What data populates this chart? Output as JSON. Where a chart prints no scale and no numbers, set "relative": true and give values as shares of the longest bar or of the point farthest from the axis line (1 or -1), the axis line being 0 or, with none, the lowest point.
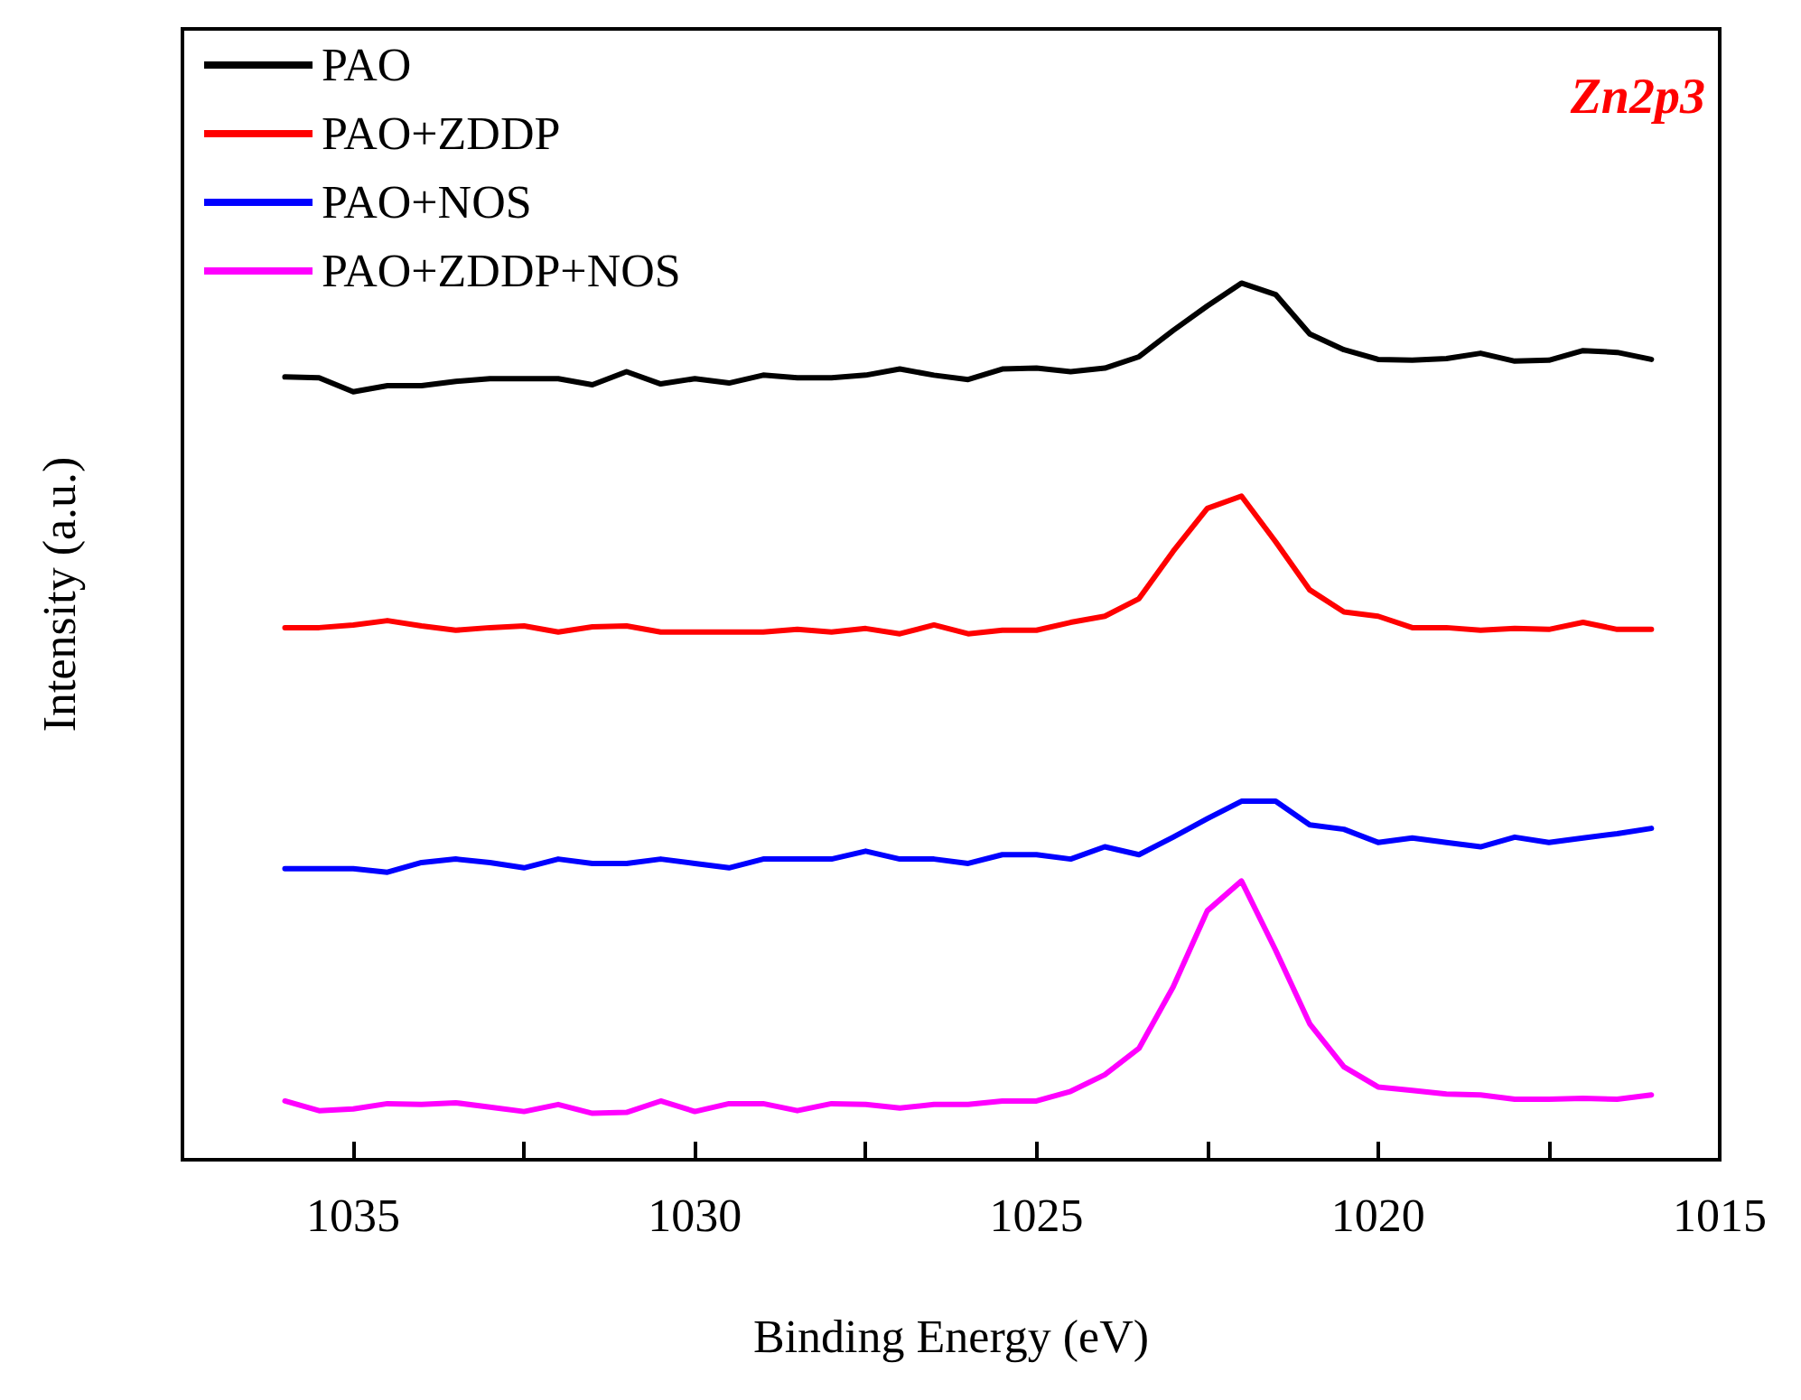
{
  "chart_data": {
    "type": "line",
    "relative": true,
    "xlabel": "Binding Energy (eV)",
    "ylabel": "Intensity (a.u.)",
    "annotations": [
      "Zn2p3"
    ],
    "xlim": [
      1037.5,
      1015
    ],
    "xticks": [
      1035,
      {
        "value": 1032.5,
        "label": null
      },
      1030,
      {
        "value": 1027.5,
        "label": null
      },
      1025,
      {
        "value": 1022.5,
        "label": null
      },
      1020,
      {
        "value": 1017.5,
        "label": null
      },
      1015
    ],
    "x": [
      1036,
      1035.5,
      1035,
      1034.5,
      1034,
      1033.5,
      1033,
      1032.5,
      1032,
      1031.5,
      1031,
      1030.5,
      1030,
      1029.5,
      1029,
      1028.5,
      1028,
      1027.5,
      1027,
      1026.5,
      1026,
      1025.5,
      1025,
      1024.5,
      1024,
      1023.5,
      1023,
      1022.5,
      1022,
      1021.5,
      1021,
      1020.5,
      1020,
      1019.5,
      1019,
      1018.5,
      1018,
      1017.5,
      1017,
      1016.5,
      1016
    ],
    "legend": "top left",
    "grid": false,
    "marker": "none",
    "line_style": "solid",
    "series": [
      {
        "name": "PAO",
        "color": "#000000",
        "values": [
          0.893,
          0.892,
          0.876,
          0.883,
          0.883,
          0.888,
          0.891,
          0.891,
          0.891,
          0.884,
          0.899,
          0.885,
          0.891,
          0.886,
          0.895,
          0.892,
          0.892,
          0.895,
          0.902,
          0.895,
          0.89,
          0.902,
          0.903,
          0.899,
          0.903,
          0.916,
          0.946,
          0.974,
          1,
          0.987,
          0.942,
          0.924,
          0.913,
          0.912,
          0.914,
          0.92,
          0.911,
          0.912,
          0.923,
          0.921,
          0.913
        ]
      },
      {
        "name": "PAO+ZDDP",
        "color": "#ff0000",
        "values": [
          0.607,
          0.607,
          0.61,
          0.615,
          0.609,
          0.604,
          0.607,
          0.609,
          0.602,
          0.608,
          0.609,
          0.602,
          0.602,
          0.602,
          0.602,
          0.605,
          0.602,
          0.606,
          0.6,
          0.61,
          0.6,
          0.604,
          0.604,
          0.613,
          0.62,
          0.64,
          0.694,
          0.743,
          0.757,
          0.705,
          0.65,
          0.625,
          0.62,
          0.607,
          0.607,
          0.604,
          0.606,
          0.605,
          0.613,
          0.605,
          0.605
        ]
      },
      {
        "name": "PAO+NOS",
        "color": "#0000ff",
        "values": [
          0.332,
          0.332,
          0.332,
          0.328,
          0.339,
          0.343,
          0.339,
          0.333,
          0.343,
          0.338,
          0.338,
          0.343,
          0.338,
          0.333,
          0.343,
          0.343,
          0.343,
          0.352,
          0.343,
          0.343,
          0.338,
          0.348,
          0.348,
          0.343,
          0.357,
          0.348,
          0.368,
          0.389,
          0.409,
          0.409,
          0.382,
          0.377,
          0.362,
          0.367,
          0.362,
          0.357,
          0.368,
          0.362,
          0.367,
          0.372,
          0.378
        ]
      },
      {
        "name": "PAO+ZDDP+NOS",
        "color": "#ff00ff",
        "values": [
          0.067,
          0.056,
          0.058,
          0.064,
          0.063,
          0.065,
          0.06,
          0.055,
          0.063,
          0.053,
          0.054,
          0.067,
          0.055,
          0.064,
          0.064,
          0.056,
          0.064,
          0.063,
          0.059,
          0.063,
          0.063,
          0.067,
          0.067,
          0.078,
          0.097,
          0.127,
          0.197,
          0.284,
          0.318,
          0.239,
          0.155,
          0.106,
          0.083,
          0.079,
          0.075,
          0.074,
          0.069,
          0.069,
          0.07,
          0.069,
          0.074
        ]
      }
    ]
  }
}
